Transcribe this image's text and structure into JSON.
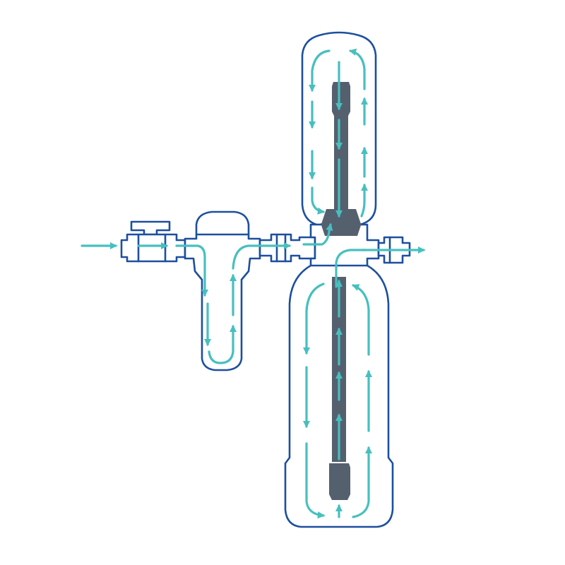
{
  "colors": {
    "outline": "#1d4f9e",
    "flow": "#47bfbf",
    "core": "#55606f",
    "background": "#ffffff"
  },
  "components": [
    "inlet-valve",
    "sediment-filter",
    "upper-tank",
    "lower-tank",
    "outlet-fitting"
  ],
  "icons": [
    "flow-arrow-icon"
  ]
}
